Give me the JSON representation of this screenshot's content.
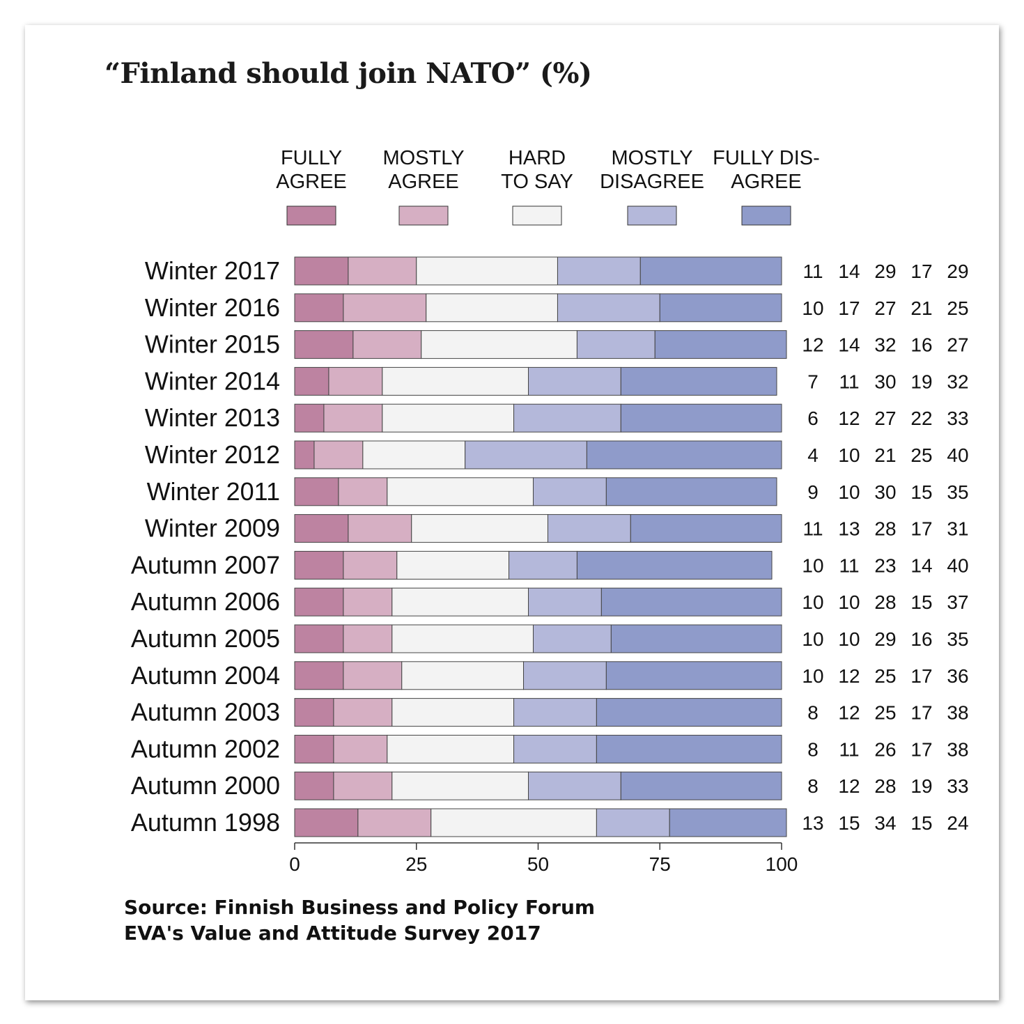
{
  "chart_data": {
    "type": "bar",
    "stacked": true,
    "orientation": "horizontal",
    "title": "“Finland should join NATO” (%)",
    "categories": [
      "Winter 2017",
      "Winter 2016",
      "Winter 2015",
      "Winter 2014",
      "Winter 2013",
      "Winter 2012",
      "Winter 2011",
      "Winter 2009",
      "Autumn 2007",
      "Autumn 2006",
      "Autumn 2005",
      "Autumn 2004",
      "Autumn 2003",
      "Autumn 2002",
      "Autumn 2000",
      "Autumn 1998"
    ],
    "series": [
      {
        "name": "FULLY AGREE",
        "label_lines": [
          "FULLY",
          "AGREE"
        ],
        "color": "#bd83a1",
        "values": [
          11,
          10,
          12,
          7,
          6,
          4,
          9,
          11,
          10,
          10,
          10,
          10,
          8,
          8,
          8,
          13
        ]
      },
      {
        "name": "MOSTLY AGREE",
        "label_lines": [
          "MOSTLY",
          "AGREE"
        ],
        "color": "#d6afc3",
        "values": [
          14,
          17,
          14,
          11,
          12,
          10,
          10,
          13,
          11,
          10,
          10,
          12,
          12,
          11,
          12,
          15
        ]
      },
      {
        "name": "HARD TO SAY",
        "label_lines": [
          "HARD",
          "TO SAY"
        ],
        "color": "#f3f3f3",
        "values": [
          29,
          27,
          32,
          30,
          27,
          21,
          30,
          28,
          23,
          28,
          29,
          25,
          25,
          26,
          28,
          34
        ]
      },
      {
        "name": "MOSTLY DISAGREE",
        "label_lines": [
          "MOSTLY",
          "DISAGREE"
        ],
        "color": "#b4b8da",
        "values": [
          17,
          21,
          16,
          19,
          22,
          25,
          15,
          17,
          14,
          15,
          16,
          17,
          17,
          17,
          19,
          15
        ]
      },
      {
        "name": "FULLY DISAGREE",
        "label_lines": [
          "FULLY DIS-",
          "AGREE"
        ],
        "color": "#8f9bca",
        "values": [
          29,
          25,
          27,
          32,
          33,
          40,
          35,
          31,
          40,
          37,
          35,
          36,
          38,
          38,
          33,
          24
        ]
      }
    ],
    "xlim": [
      0,
      100
    ],
    "xticks": [
      0,
      25,
      50,
      75,
      100
    ],
    "grid": false,
    "legend_position": "top"
  },
  "source": {
    "line1": "Source: Finnish Business and Policy Forum",
    "line2": "EVA's Value and Attitude Survey 2017"
  }
}
